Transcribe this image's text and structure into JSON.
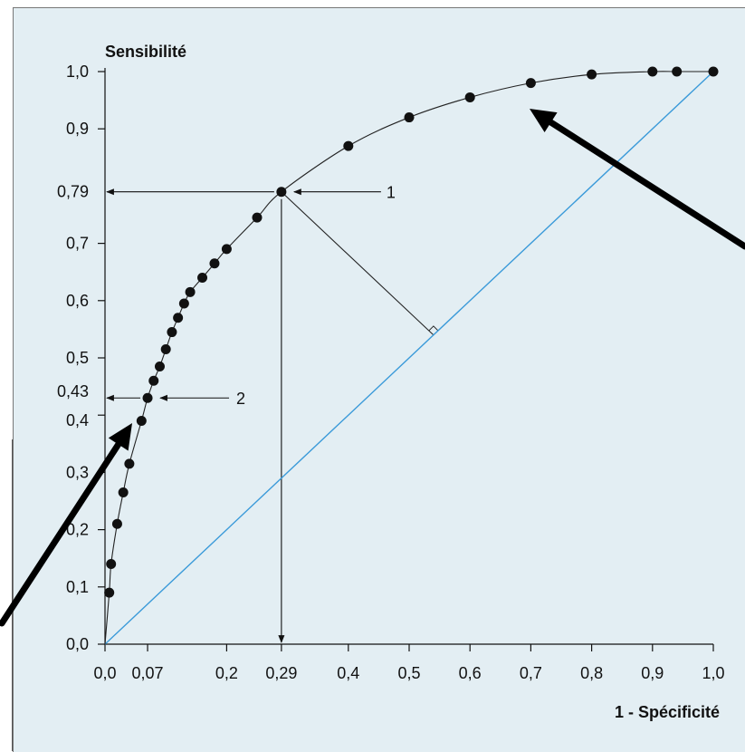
{
  "chart_data": {
    "type": "scatter",
    "title": "",
    "xlabel": "1 - Spécificité",
    "ylabel": "Sensibilité",
    "x_ticks": [
      {
        "value": 0.0,
        "label": "0,0"
      },
      {
        "value": 0.07,
        "label": "0,07"
      },
      {
        "value": 0.2,
        "label": "0,2"
      },
      {
        "value": 0.29,
        "label": "0,29"
      },
      {
        "value": 0.4,
        "label": "0,4"
      },
      {
        "value": 0.5,
        "label": "0,5"
      },
      {
        "value": 0.6,
        "label": "0,6"
      },
      {
        "value": 0.7,
        "label": "0,7"
      },
      {
        "value": 0.8,
        "label": "0,8"
      },
      {
        "value": 0.9,
        "label": "0,9"
      },
      {
        "value": 1.0,
        "label": "1,0"
      }
    ],
    "y_ticks": [
      {
        "value": 0.0,
        "label": "0,0"
      },
      {
        "value": 0.1,
        "label": "0,1"
      },
      {
        "value": 0.2,
        "label": "0,2"
      },
      {
        "value": 0.3,
        "label": "0,3"
      },
      {
        "value": 0.4,
        "label": "0,4"
      },
      {
        "value": 0.43,
        "label": "0,43"
      },
      {
        "value": 0.5,
        "label": "0,5"
      },
      {
        "value": 0.6,
        "label": "0,6"
      },
      {
        "value": 0.7,
        "label": "0,7"
      },
      {
        "value": 0.79,
        "label": "0,79"
      },
      {
        "value": 0.9,
        "label": "0,9"
      },
      {
        "value": 1.0,
        "label": "1,0"
      }
    ],
    "xlim": [
      0,
      1
    ],
    "ylim": [
      0,
      1
    ],
    "grid": false,
    "series": [
      {
        "color": "#111111",
        "points": [
          [
            0.007,
            0.09
          ],
          [
            0.01,
            0.14
          ],
          [
            0.02,
            0.21
          ],
          [
            0.03,
            0.265
          ],
          [
            0.04,
            0.315
          ],
          [
            0.06,
            0.39
          ],
          [
            0.07,
            0.43
          ],
          [
            0.08,
            0.46
          ],
          [
            0.09,
            0.485
          ],
          [
            0.1,
            0.515
          ],
          [
            0.11,
            0.545
          ],
          [
            0.12,
            0.57
          ],
          [
            0.13,
            0.595
          ],
          [
            0.14,
            0.615
          ],
          [
            0.16,
            0.64
          ],
          [
            0.18,
            0.665
          ],
          [
            0.2,
            0.69
          ],
          [
            0.25,
            0.745
          ],
          [
            0.29,
            0.79
          ],
          [
            0.4,
            0.87
          ],
          [
            0.5,
            0.92
          ],
          [
            0.6,
            0.955
          ],
          [
            0.7,
            0.98
          ],
          [
            0.8,
            0.995
          ],
          [
            0.9,
            1.0
          ],
          [
            0.94,
            1.0
          ],
          [
            1.0,
            1.0
          ]
        ]
      }
    ],
    "diagonal_color": "#3a9ad9",
    "annotations": [
      {
        "label": "1",
        "point": [
          0.29,
          0.79
        ]
      },
      {
        "label": "2",
        "point": [
          0.07,
          0.43
        ]
      }
    ]
  }
}
